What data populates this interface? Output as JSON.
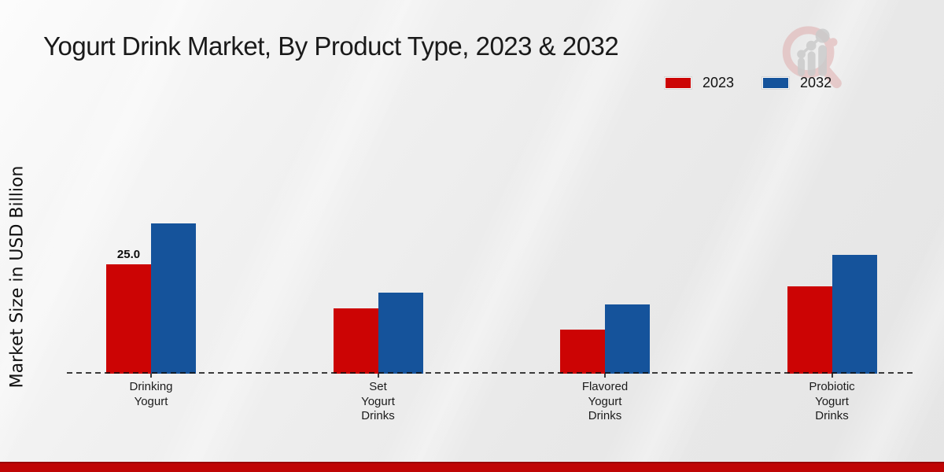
{
  "title": "Yogurt Drink Market, By Product Type, 2023 & 2032",
  "y_axis_label": "Market Size in USD Billion",
  "legend": {
    "items": [
      {
        "label": "2023",
        "color": "#cc0404"
      },
      {
        "label": "2032",
        "color": "#15539b"
      }
    ]
  },
  "footer": {
    "band_color": "#bf0505"
  },
  "colors": {
    "series_2023": "#cc0404",
    "series_2032": "#15539b",
    "baseline": "#1a1a1a",
    "footer_band": "#bf0505"
  },
  "chart_data": {
    "type": "bar",
    "title": "Yogurt Drink Market, By Product Type, 2023 & 2032",
    "xlabel": "",
    "ylabel": "Market Size in USD Billion",
    "units": "USD Billion",
    "categories": [
      "Drinking Yogurt",
      "Set Yogurt Drinks",
      "Flavored Yogurt Drinks",
      "Probiotic Yogurt Drinks"
    ],
    "category_lines": [
      [
        "Drinking",
        "Yogurt"
      ],
      [
        "Set",
        "Yogurt",
        "Drinks"
      ],
      [
        "Flavored",
        "Yogurt",
        "Drinks"
      ],
      [
        "Probiotic",
        "Yogurt",
        "Drinks"
      ]
    ],
    "series": [
      {
        "name": "2023",
        "color": "#cc0404",
        "values": [
          25.0,
          15.0,
          10.0,
          20.0
        ],
        "data_labels": [
          "25.0",
          "",
          "",
          ""
        ]
      },
      {
        "name": "2032",
        "color": "#15539b",
        "values": [
          34.4,
          18.5,
          15.8,
          27.2
        ],
        "data_labels": [
          "",
          "",
          "",
          ""
        ]
      }
    ],
    "ylim": [
      0,
      40
    ],
    "grid": false,
    "y_axis_ticks_visible": false,
    "legend_position": "top-right",
    "baseline_style": "dashed"
  }
}
